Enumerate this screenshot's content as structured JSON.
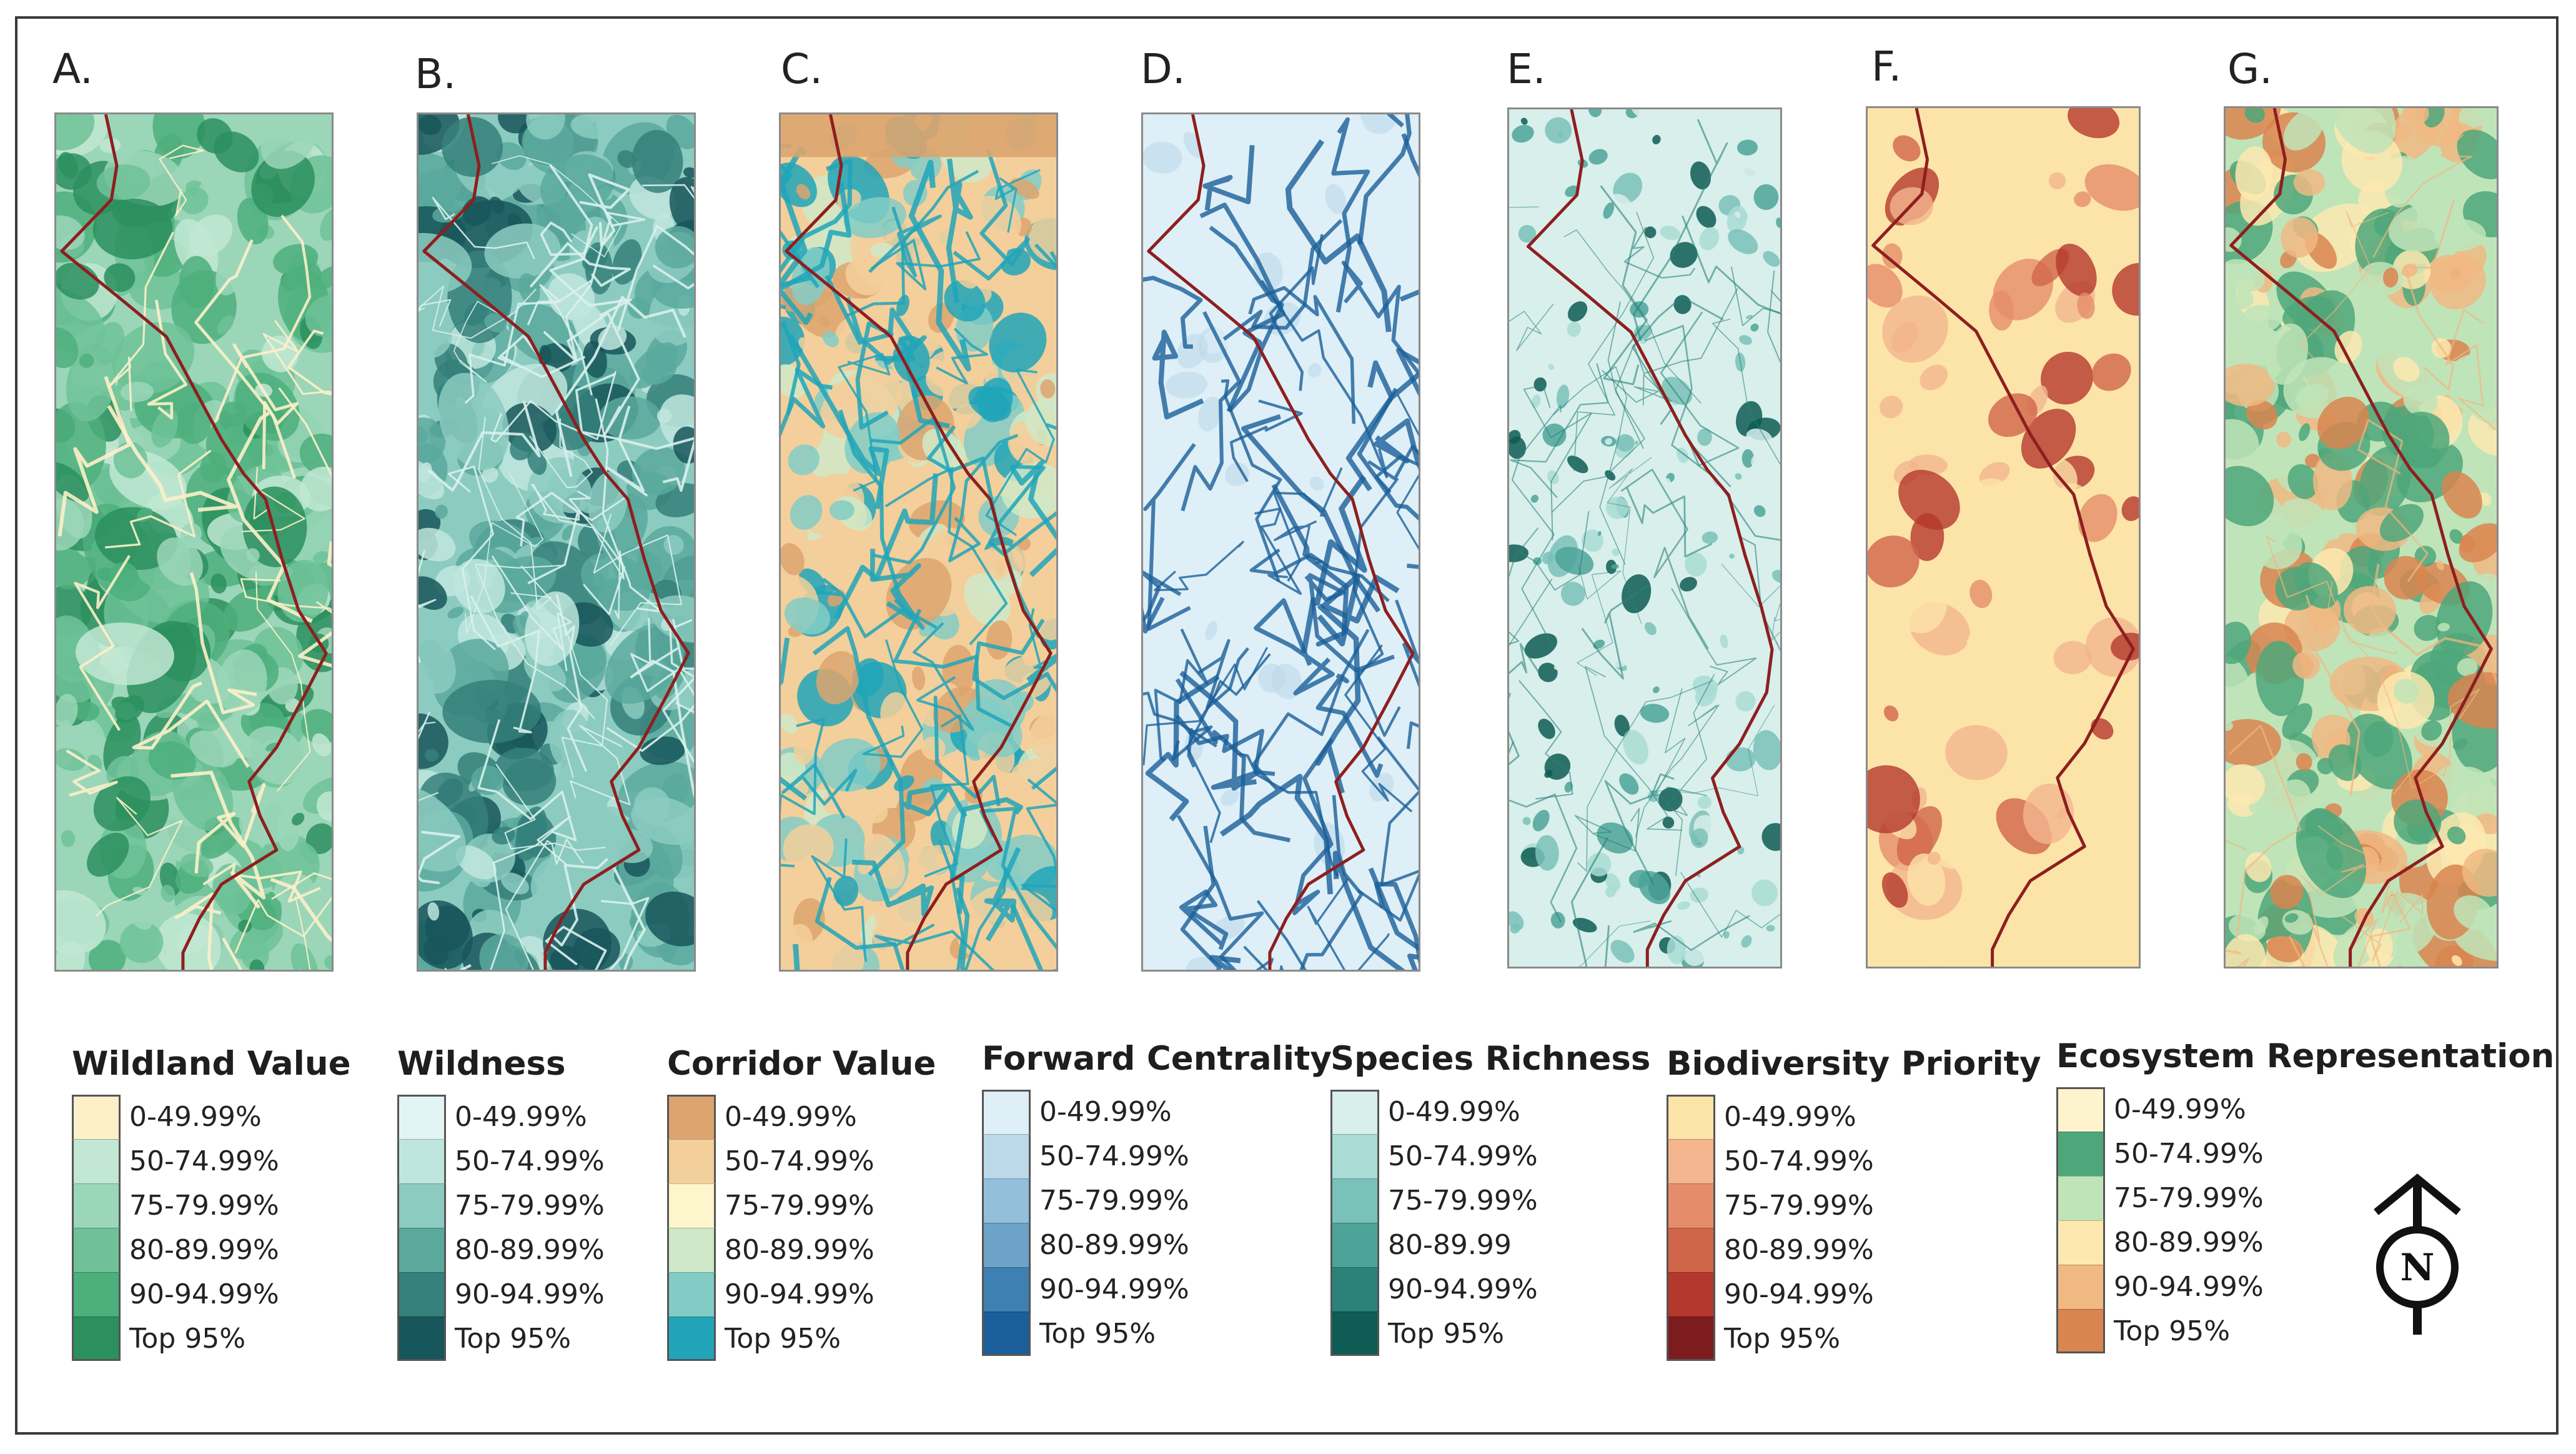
{
  "figure": {
    "panels": [
      {
        "letter": "A.",
        "name": "wildland-value",
        "border_color": "#8e1f1f"
      },
      {
        "letter": "B.",
        "name": "wildness"
      },
      {
        "letter": "C.",
        "name": "corridor-value"
      },
      {
        "letter": "D.",
        "name": "forward-centrality"
      },
      {
        "letter": "E.",
        "name": "species-richness"
      },
      {
        "letter": "F.",
        "name": "biodiversity-priority"
      },
      {
        "letter": "G.",
        "name": "ecosystem-representation"
      }
    ],
    "legends": [
      {
        "title": "Wildland Value",
        "items": [
          {
            "label": "0-49.99%",
            "color": "#fdf0c9"
          },
          {
            "label": "50-74.99%",
            "color": "#c2e7d4"
          },
          {
            "label": "75-79.99%",
            "color": "#9bd6b9"
          },
          {
            "label": "80-89.99%",
            "color": "#6fc298"
          },
          {
            "label": "90-94.99%",
            "color": "#4daf7c"
          },
          {
            "label": "Top 95%",
            "color": "#2c8f5e"
          }
        ]
      },
      {
        "title": "Wildness",
        "items": [
          {
            "label": "0-49.99%",
            "color": "#e2f4f3"
          },
          {
            "label": "50-74.99%",
            "color": "#bfe6de"
          },
          {
            "label": "75-79.99%",
            "color": "#8ccbc0"
          },
          {
            "label": "80-89.99%",
            "color": "#5ba99d"
          },
          {
            "label": "90-94.99%",
            "color": "#35807a"
          },
          {
            "label": "Top 95%",
            "color": "#17565a"
          }
        ]
      },
      {
        "title": "Corridor Value",
        "items": [
          {
            "label": "0-49.99%",
            "color": "#dca46e"
          },
          {
            "label": "50-74.99%",
            "color": "#f3cf9b"
          },
          {
            "label": "75-79.99%",
            "color": "#fdf6cc"
          },
          {
            "label": "80-89.99%",
            "color": "#cfe9c8"
          },
          {
            "label": "90-94.99%",
            "color": "#83ccc5"
          },
          {
            "label": "Top 95%",
            "color": "#21a4b8"
          }
        ]
      },
      {
        "title": "Forward Centrality",
        "items": [
          {
            "label": "0-49.99%",
            "color": "#deeff7"
          },
          {
            "label": "50-74.99%",
            "color": "#bcd9ea"
          },
          {
            "label": "75-79.99%",
            "color": "#93bfda"
          },
          {
            "label": "80-89.99%",
            "color": "#6ea3c8"
          },
          {
            "label": "90-94.99%",
            "color": "#3f80b3"
          },
          {
            "label": "Top 95%",
            "color": "#1a5f99"
          }
        ]
      },
      {
        "title": "Species Richness",
        "items": [
          {
            "label": "0-49.99%",
            "color": "#d8efec"
          },
          {
            "label": "50-74.99%",
            "color": "#a9dcd5"
          },
          {
            "label": "75-79.99%",
            "color": "#7ac1b9"
          },
          {
            "label": "80-89.99",
            "color": "#4ea399"
          },
          {
            "label": "90-94.99%",
            "color": "#2a8279"
          },
          {
            "label": "Top 95%",
            "color": "#0e5c53"
          }
        ]
      },
      {
        "title": "Biodiversity Priority",
        "items": [
          {
            "label": "0-49.99%",
            "color": "#fce4a8"
          },
          {
            "label": "50-74.99%",
            "color": "#f3b58e"
          },
          {
            "label": "75-79.99%",
            "color": "#e58d6a"
          },
          {
            "label": "80-89.99%",
            "color": "#d1654a"
          },
          {
            "label": "90-94.99%",
            "color": "#b4382d"
          },
          {
            "label": "Top 95%",
            "color": "#7d1c1f"
          }
        ]
      },
      {
        "title": "Ecosystem Representation",
        "items": [
          {
            "label": "0-49.99%",
            "color": "#fdf3cd"
          },
          {
            "label": "50-74.99%",
            "color": "#4da77a"
          },
          {
            "label": "75-79.99%",
            "color": "#bfe4b8"
          },
          {
            "label": "80-89.99%",
            "color": "#fde9b0"
          },
          {
            "label": "90-94.99%",
            "color": "#f0b883"
          },
          {
            "label": "Top 95%",
            "color": "#d9854f"
          }
        ]
      }
    ],
    "north_arrow": {
      "label": "N"
    },
    "colors": {
      "boundary": "#8e1f1f"
    }
  }
}
